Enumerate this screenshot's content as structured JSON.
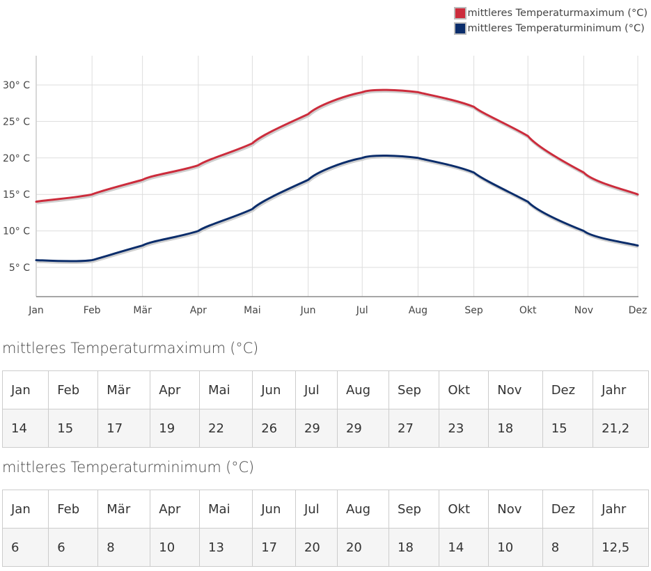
{
  "legend": {
    "items": [
      {
        "label": "mittleres Temperaturmaximum (°C)",
        "color": "#cc2c3c"
      },
      {
        "label": "mittleres Temperaturminimum (°C)",
        "color": "#0b2d6b"
      }
    ]
  },
  "chart_data": {
    "type": "line",
    "title": "",
    "xlabel": "",
    "ylabel": "",
    "smoothing": "spline",
    "grid": true,
    "legend_position": "top-right",
    "categories": [
      "Jan",
      "Feb",
      "Mär",
      "Apr",
      "Mai",
      "Jun",
      "Jul",
      "Aug",
      "Sep",
      "Okt",
      "Nov",
      "Dez"
    ],
    "x_day_of_year": [
      0,
      31,
      59,
      90,
      120,
      151,
      181,
      212,
      243,
      273,
      304,
      334
    ],
    "y_ticks": [
      5,
      10,
      15,
      20,
      25,
      30
    ],
    "y_tick_labels": [
      "5° C",
      "10° C",
      "15° C",
      "20° C",
      "25° C",
      "30° C"
    ],
    "ylim": [
      1,
      34
    ],
    "series": [
      {
        "name": "mittleres Temperaturmaximum (°C)",
        "color": "#cc2c3c",
        "values": [
          14,
          15,
          17,
          19,
          22,
          26,
          29,
          29,
          27,
          23,
          18,
          15
        ]
      },
      {
        "name": "mittleres Temperaturminimum (°C)",
        "color": "#0b2d6b",
        "values": [
          6,
          6,
          8,
          10,
          13,
          17,
          20,
          20,
          18,
          14,
          10,
          8
        ]
      }
    ]
  },
  "tables": [
    {
      "title": "mittleres Temperaturmaximum (°C)",
      "headers": [
        "Jan",
        "Feb",
        "Mär",
        "Apr",
        "Mai",
        "Jun",
        "Jul",
        "Aug",
        "Sep",
        "Okt",
        "Nov",
        "Dez",
        "Jahr"
      ],
      "values": [
        "14",
        "15",
        "17",
        "19",
        "22",
        "26",
        "29",
        "29",
        "27",
        "23",
        "18",
        "15",
        "21,2"
      ]
    },
    {
      "title": "mittleres Temperaturminimum (°C)",
      "headers": [
        "Jan",
        "Feb",
        "Mär",
        "Apr",
        "Mai",
        "Jun",
        "Jul",
        "Aug",
        "Sep",
        "Okt",
        "Nov",
        "Dez",
        "Jahr"
      ],
      "values": [
        "6",
        "6",
        "8",
        "10",
        "13",
        "17",
        "20",
        "20",
        "18",
        "14",
        "10",
        "8",
        "12,5"
      ]
    }
  ]
}
